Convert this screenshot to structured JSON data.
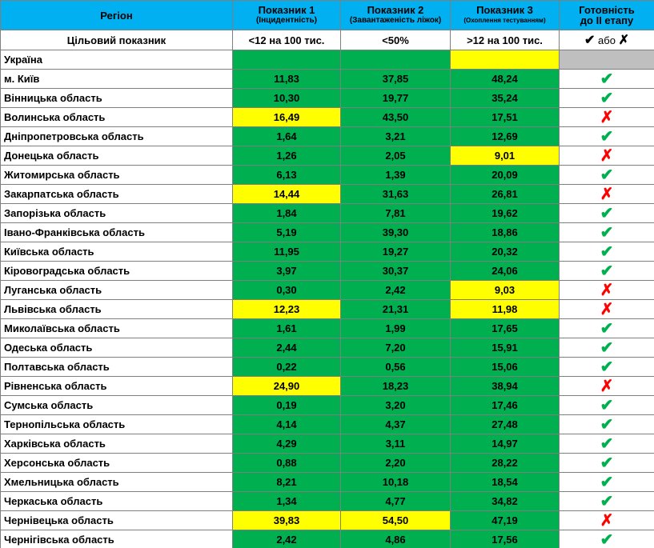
{
  "header": {
    "region": "Регіон",
    "col1": "Показник 1",
    "col1_sub": "(Інцидентність)",
    "col2": "Показник 2",
    "col2_sub": "(Завантаженість ліжок)",
    "col3": "Показник 3",
    "col3_sub": "(Охоплення тестуванням)",
    "status_line1": "Готовність",
    "status_line2": "до ІІ етапу",
    "color": "#00b0f0"
  },
  "target": {
    "label": "Цільовий показник",
    "values": [
      "<12 на 100 тис.",
      "<50%",
      ">12 на 100 тис."
    ],
    "status_check": "✔",
    "status_or": "або",
    "status_cross": "✗"
  },
  "rows": [
    {
      "region": "Україна",
      "values": [
        null,
        null,
        null
      ],
      "fills": [
        "#00b050",
        "#00b050",
        "#ffff00"
      ],
      "status": null,
      "status_fill": "#bfbfbf"
    },
    {
      "region": "м. Київ",
      "values": [
        "11,83",
        "37,85",
        "48,24"
      ],
      "fills": [
        "#00b050",
        "#00b050",
        "#00b050"
      ],
      "status": "✔",
      "status_color": "#00b050"
    },
    {
      "region": "Вінницька область",
      "values": [
        "10,30",
        "19,77",
        "35,24"
      ],
      "fills": [
        "#00b050",
        "#00b050",
        "#00b050"
      ],
      "status": "✔",
      "status_color": "#00b050"
    },
    {
      "region": "Волинська область",
      "values": [
        "16,49",
        "43,50",
        "17,51"
      ],
      "fills": [
        "#ffff00",
        "#00b050",
        "#00b050"
      ],
      "status": "✗",
      "status_color": "#ff0000"
    },
    {
      "region": "Дніпропетровська область",
      "values": [
        "1,64",
        "3,21",
        "12,69"
      ],
      "fills": [
        "#00b050",
        "#00b050",
        "#00b050"
      ],
      "status": "✔",
      "status_color": "#00b050"
    },
    {
      "region": "Донецька область",
      "values": [
        "1,26",
        "2,05",
        "9,01"
      ],
      "fills": [
        "#00b050",
        "#00b050",
        "#ffff00"
      ],
      "status": "✗",
      "status_color": "#ff0000"
    },
    {
      "region": "Житомирська область",
      "values": [
        "6,13",
        "1,39",
        "20,09"
      ],
      "fills": [
        "#00b050",
        "#00b050",
        "#00b050"
      ],
      "status": "✔",
      "status_color": "#00b050"
    },
    {
      "region": "Закарпатська область",
      "values": [
        "14,44",
        "31,63",
        "26,81"
      ],
      "fills": [
        "#ffff00",
        "#00b050",
        "#00b050"
      ],
      "status": "✗",
      "status_color": "#ff0000"
    },
    {
      "region": "Запорізька область",
      "values": [
        "1,84",
        "7,81",
        "19,62"
      ],
      "fills": [
        "#00b050",
        "#00b050",
        "#00b050"
      ],
      "status": "✔",
      "status_color": "#00b050"
    },
    {
      "region": "Івано-Франківська область",
      "values": [
        "5,19",
        "39,30",
        "18,86"
      ],
      "fills": [
        "#00b050",
        "#00b050",
        "#00b050"
      ],
      "status": "✔",
      "status_color": "#00b050"
    },
    {
      "region": "Київська область",
      "values": [
        "11,95",
        "19,27",
        "20,32"
      ],
      "fills": [
        "#00b050",
        "#00b050",
        "#00b050"
      ],
      "status": "✔",
      "status_color": "#00b050"
    },
    {
      "region": "Кіровоградська область",
      "values": [
        "3,97",
        "30,37",
        "24,06"
      ],
      "fills": [
        "#00b050",
        "#00b050",
        "#00b050"
      ],
      "status": "✔",
      "status_color": "#00b050"
    },
    {
      "region": "Луганська область",
      "values": [
        "0,30",
        "2,42",
        "9,03"
      ],
      "fills": [
        "#00b050",
        "#00b050",
        "#ffff00"
      ],
      "status": "✗",
      "status_color": "#ff0000"
    },
    {
      "region": "Львівська область",
      "values": [
        "12,23",
        "21,31",
        "11,98"
      ],
      "fills": [
        "#ffff00",
        "#00b050",
        "#ffff00"
      ],
      "status": "✗",
      "status_color": "#ff0000"
    },
    {
      "region": "Миколаївська область",
      "values": [
        "1,61",
        "1,99",
        "17,65"
      ],
      "fills": [
        "#00b050",
        "#00b050",
        "#00b050"
      ],
      "status": "✔",
      "status_color": "#00b050"
    },
    {
      "region": "Одеська область",
      "values": [
        "2,44",
        "7,20",
        "15,91"
      ],
      "fills": [
        "#00b050",
        "#00b050",
        "#00b050"
      ],
      "status": "✔",
      "status_color": "#00b050"
    },
    {
      "region": "Полтавська область",
      "values": [
        "0,22",
        "0,56",
        "15,06"
      ],
      "fills": [
        "#00b050",
        "#00b050",
        "#00b050"
      ],
      "status": "✔",
      "status_color": "#00b050"
    },
    {
      "region": "Рівненська область",
      "values": [
        "24,90",
        "18,23",
        "38,94"
      ],
      "fills": [
        "#ffff00",
        "#00b050",
        "#00b050"
      ],
      "status": "✗",
      "status_color": "#ff0000"
    },
    {
      "region": "Сумська область",
      "values": [
        "0,19",
        "3,20",
        "17,46"
      ],
      "fills": [
        "#00b050",
        "#00b050",
        "#00b050"
      ],
      "status": "✔",
      "status_color": "#00b050"
    },
    {
      "region": "Тернопільська область",
      "values": [
        "4,14",
        "4,37",
        "27,48"
      ],
      "fills": [
        "#00b050",
        "#00b050",
        "#00b050"
      ],
      "status": "✔",
      "status_color": "#00b050"
    },
    {
      "region": "Харківська область",
      "values": [
        "4,29",
        "3,11",
        "14,97"
      ],
      "fills": [
        "#00b050",
        "#00b050",
        "#00b050"
      ],
      "status": "✔",
      "status_color": "#00b050"
    },
    {
      "region": "Херсонська область",
      "values": [
        "0,88",
        "2,20",
        "28,22"
      ],
      "fills": [
        "#00b050",
        "#00b050",
        "#00b050"
      ],
      "status": "✔",
      "status_color": "#00b050"
    },
    {
      "region": "Хмельницька область",
      "values": [
        "8,21",
        "10,18",
        "18,54"
      ],
      "fills": [
        "#00b050",
        "#00b050",
        "#00b050"
      ],
      "status": "✔",
      "status_color": "#00b050"
    },
    {
      "region": "Черкаська область",
      "values": [
        "1,34",
        "4,77",
        "34,82"
      ],
      "fills": [
        "#00b050",
        "#00b050",
        "#00b050"
      ],
      "status": "✔",
      "status_color": "#00b050"
    },
    {
      "region": "Чернівецька область",
      "values": [
        "39,83",
        "54,50",
        "47,19"
      ],
      "fills": [
        "#ffff00",
        "#ffff00",
        "#00b050"
      ],
      "status": "✗",
      "status_color": "#ff0000"
    },
    {
      "region": "Чернігівська область",
      "values": [
        "2,42",
        "4,86",
        "17,56"
      ],
      "fills": [
        "#00b050",
        "#00b050",
        "#00b050"
      ],
      "status": "✔",
      "status_color": "#00b050"
    }
  ]
}
